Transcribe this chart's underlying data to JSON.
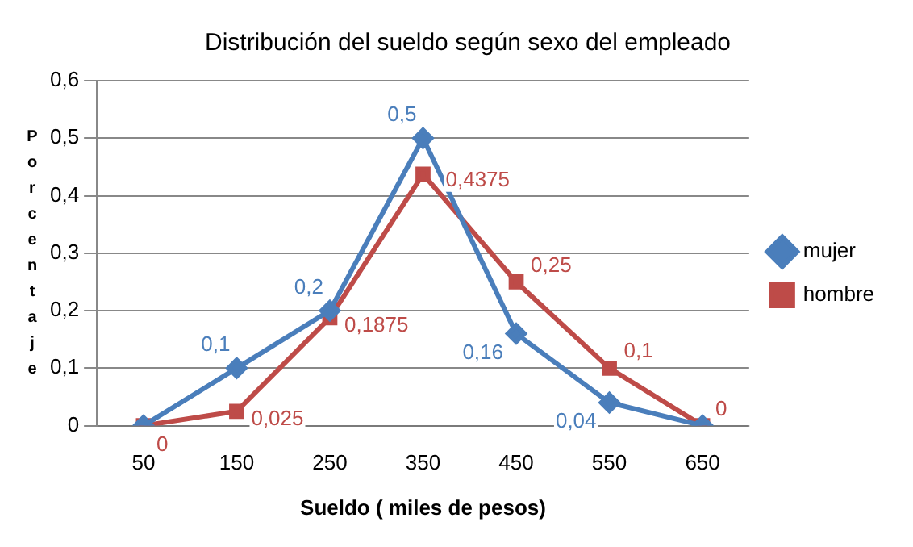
{
  "chart_data": {
    "type": "line",
    "title": "Distribución del sueldo según sexo del empleado",
    "xlabel": "Sueldo ( miles de pesos)",
    "ylabel": "Porcentaje",
    "categories": [
      "50",
      "150",
      "250",
      "350",
      "450",
      "550",
      "650"
    ],
    "series": [
      {
        "name": "mujer",
        "color": "#4a7ebb",
        "marker": "diamond",
        "values": [
          0,
          0.1,
          0.2,
          0.5,
          0.16,
          0.04,
          0
        ],
        "value_labels": [
          null,
          "0,1",
          "0,2",
          "0,5",
          "0,16",
          "0,04",
          null
        ]
      },
      {
        "name": "hombre",
        "color": "#be4b48",
        "marker": "square",
        "values": [
          0,
          0.025,
          0.1875,
          0.4375,
          0.25,
          0.1,
          0
        ],
        "value_labels": [
          "0",
          "0,025",
          "0,1875",
          "0,4375",
          "0,25",
          "0,1",
          "0"
        ]
      }
    ],
    "ylim": [
      0,
      0.6
    ],
    "yticks": [
      {
        "value": 0,
        "label": "0"
      },
      {
        "value": 0.1,
        "label": "0,1"
      },
      {
        "value": 0.2,
        "label": "0,2"
      },
      {
        "value": 0.3,
        "label": "0,3"
      },
      {
        "value": 0.4,
        "label": "0,4"
      },
      {
        "value": 0.5,
        "label": "0,5"
      },
      {
        "value": 0.6,
        "label": "0,6"
      }
    ],
    "grid": "y",
    "legend": "right",
    "line_style": "solid"
  }
}
